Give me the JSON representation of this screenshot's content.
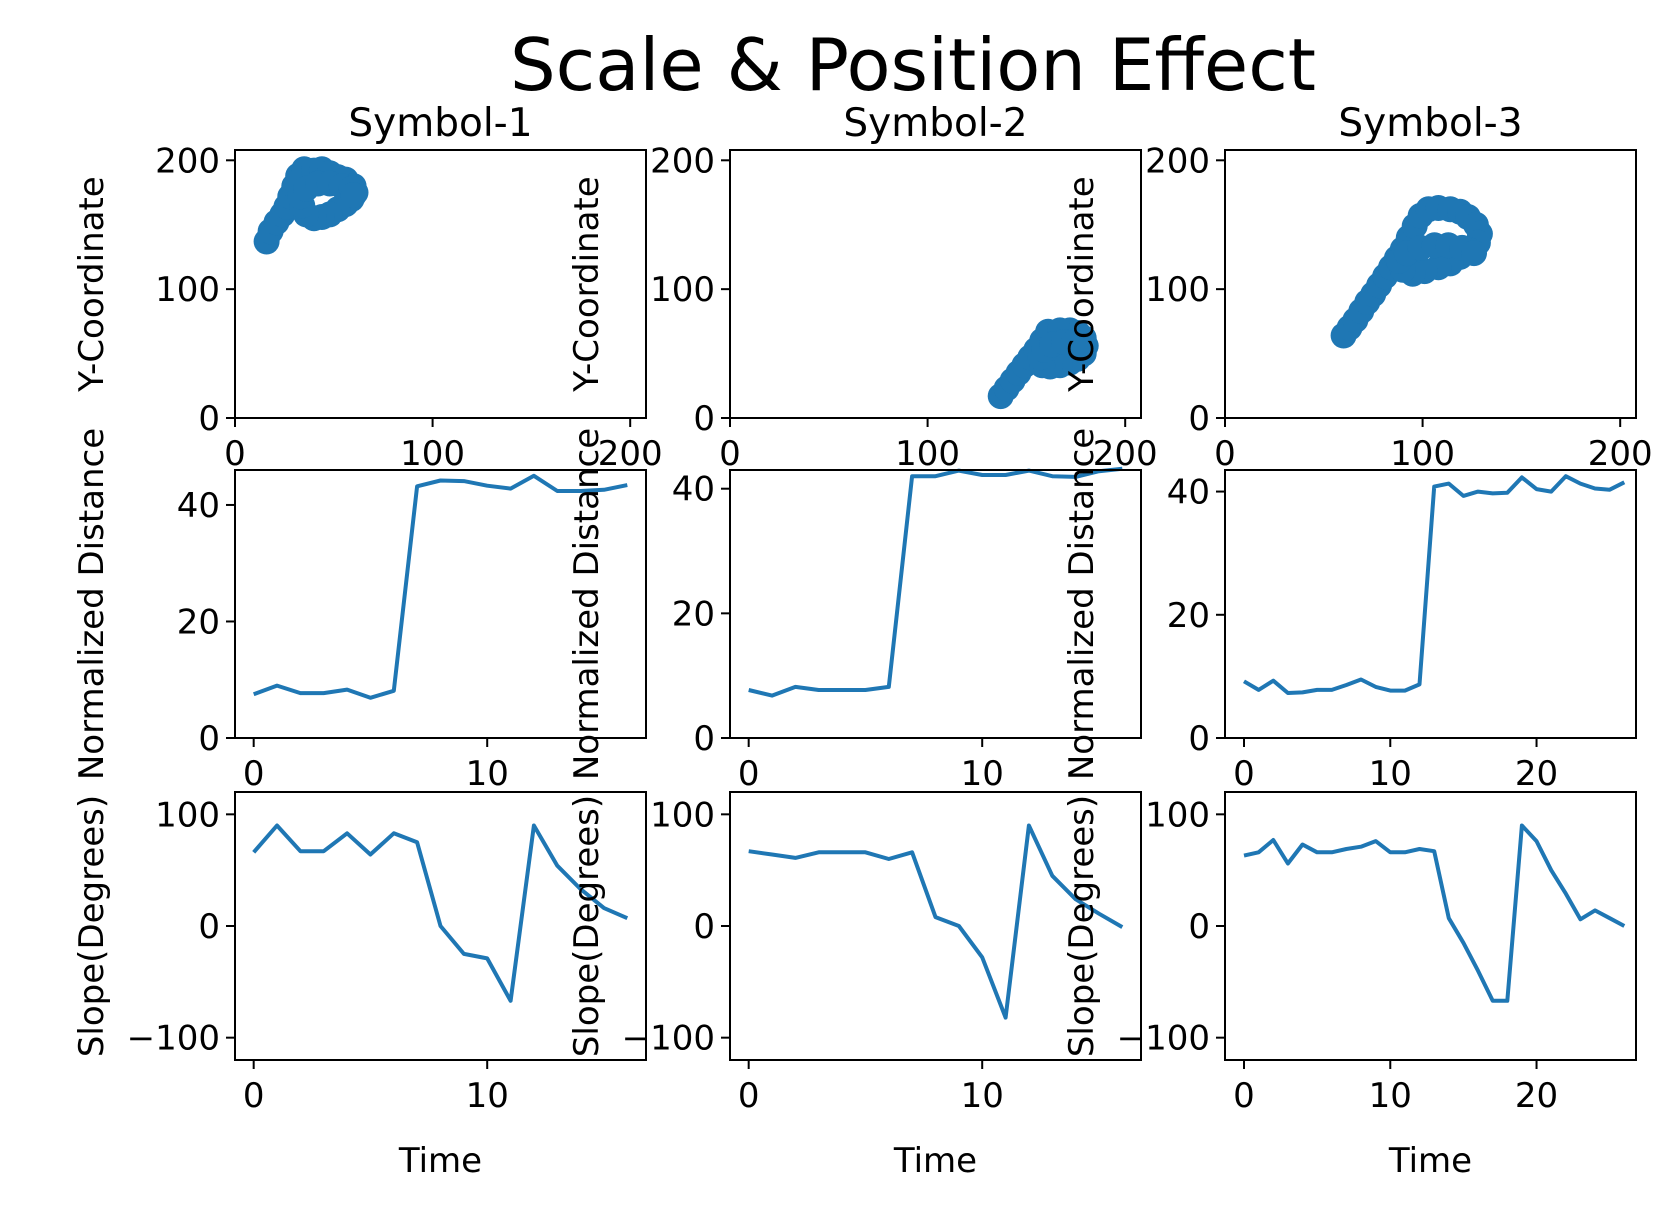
{
  "suptitle": "Scale & Position Effect",
  "accent_color": "#1f77b4",
  "chart_data": [
    {
      "id": "r0c0",
      "type": "scatter",
      "title": "Symbol-1",
      "xlabel": "",
      "ylabel": "Y-Coordinate",
      "xlim": [
        0,
        208
      ],
      "ylim": [
        0,
        208
      ],
      "xticks": [
        0,
        100,
        200
      ],
      "xtick_labels": [
        "0",
        "100",
        "200"
      ],
      "yticks": [
        0,
        100,
        200
      ],
      "ytick_labels": [
        "0",
        "100",
        "200"
      ],
      "points": [
        [
          16,
          137
        ],
        [
          18,
          145
        ],
        [
          21,
          152
        ],
        [
          24,
          158
        ],
        [
          26,
          164
        ],
        [
          28,
          172
        ],
        [
          30,
          180
        ],
        [
          32,
          188
        ],
        [
          35,
          193
        ],
        [
          40,
          192
        ],
        [
          44,
          193
        ],
        [
          48,
          190
        ],
        [
          52,
          187
        ],
        [
          56,
          185
        ],
        [
          60,
          180
        ],
        [
          61,
          175
        ],
        [
          59,
          170
        ],
        [
          56,
          166
        ],
        [
          52,
          162
        ],
        [
          48,
          158
        ],
        [
          44,
          156
        ],
        [
          40,
          155
        ],
        [
          36,
          158
        ],
        [
          34,
          165
        ],
        [
          33,
          172
        ],
        [
          36,
          178
        ],
        [
          42,
          182
        ],
        [
          48,
          182
        ],
        [
          54,
          180
        ],
        [
          59,
          178
        ],
        [
          60,
          173
        ]
      ]
    },
    {
      "id": "r0c1",
      "type": "scatter",
      "title": "Symbol-2",
      "xlabel": "",
      "ylabel": "Y-Coordinate",
      "xlim": [
        0,
        208
      ],
      "ylim": [
        0,
        208
      ],
      "xticks": [
        0,
        100,
        200
      ],
      "xtick_labels": [
        "0",
        "100",
        "200"
      ],
      "yticks": [
        0,
        100,
        200
      ],
      "ytick_labels": [
        "0",
        "100",
        "200"
      ],
      "points": [
        [
          137,
          17
        ],
        [
          140,
          23
        ],
        [
          143,
          29
        ],
        [
          146,
          35
        ],
        [
          149,
          41
        ],
        [
          152,
          47
        ],
        [
          155,
          53
        ],
        [
          158,
          60
        ],
        [
          161,
          67
        ],
        [
          167,
          68
        ],
        [
          172,
          68
        ],
        [
          176,
          66
        ],
        [
          179,
          62
        ],
        [
          180,
          56
        ],
        [
          179,
          50
        ],
        [
          176,
          46
        ],
        [
          172,
          43
        ],
        [
          167,
          41
        ],
        [
          162,
          40
        ],
        [
          158,
          41
        ],
        [
          157,
          47
        ],
        [
          159,
          53
        ],
        [
          163,
          57
        ],
        [
          169,
          59
        ],
        [
          174,
          59
        ],
        [
          178,
          57
        ]
      ]
    },
    {
      "id": "r0c2",
      "type": "scatter",
      "title": "Symbol-3",
      "xlabel": "",
      "ylabel": "Y-Coordinate",
      "xlim": [
        0,
        208
      ],
      "ylim": [
        0,
        208
      ],
      "xticks": [
        0,
        100,
        200
      ],
      "xtick_labels": [
        "0",
        "100",
        "200"
      ],
      "yticks": [
        0,
        100,
        200
      ],
      "ytick_labels": [
        "0",
        "100",
        "200"
      ],
      "points": [
        [
          60,
          64
        ],
        [
          63,
          70
        ],
        [
          66,
          76
        ],
        [
          69,
          83
        ],
        [
          72,
          90
        ],
        [
          75,
          96
        ],
        [
          78,
          103
        ],
        [
          81,
          110
        ],
        [
          84,
          117
        ],
        [
          87,
          124
        ],
        [
          90,
          131
        ],
        [
          93,
          140
        ],
        [
          96,
          149
        ],
        [
          99,
          157
        ],
        [
          103,
          162
        ],
        [
          108,
          163
        ],
        [
          114,
          162
        ],
        [
          119,
          160
        ],
        [
          123,
          156
        ],
        [
          127,
          150
        ],
        [
          129,
          143
        ],
        [
          128,
          136
        ],
        [
          124,
          130
        ],
        [
          119,
          125
        ],
        [
          114,
          120
        ],
        [
          108,
          117
        ],
        [
          101,
          114
        ],
        [
          95,
          112
        ],
        [
          90,
          115
        ],
        [
          88,
          122
        ],
        [
          92,
          128
        ],
        [
          99,
          132
        ],
        [
          106,
          134
        ],
        [
          113,
          134
        ],
        [
          120,
          132
        ],
        [
          126,
          128
        ]
      ]
    },
    {
      "id": "r1c0",
      "type": "line",
      "title": "",
      "xlabel": "",
      "ylabel": "Normalized Distance",
      "xlim": [
        -0.8,
        16.8
      ],
      "ylim": [
        0,
        46
      ],
      "xticks": [
        0,
        10
      ],
      "xtick_labels": [
        "0",
        "10"
      ],
      "yticks": [
        0,
        20,
        40
      ],
      "ytick_labels": [
        "0",
        "20",
        "40"
      ],
      "x": [
        0,
        1,
        2,
        3,
        4,
        5,
        6,
        7,
        8,
        9,
        10,
        11,
        12,
        13,
        14,
        15,
        16
      ],
      "y": [
        7.5,
        9,
        7.7,
        7.7,
        8.3,
        6.9,
        8.1,
        43.2,
        44.2,
        44.1,
        43.3,
        42.8,
        45.0,
        42.4,
        42.4,
        42.6,
        43.4
      ]
    },
    {
      "id": "r1c1",
      "type": "line",
      "title": "",
      "xlabel": "",
      "ylabel": "Normalized Distance",
      "xlim": [
        -0.8,
        16.8
      ],
      "ylim": [
        0,
        43
      ],
      "xticks": [
        0,
        10
      ],
      "xtick_labels": [
        "0",
        "10"
      ],
      "yticks": [
        0,
        20,
        40
      ],
      "ytick_labels": [
        "0",
        "20",
        "40"
      ],
      "x": [
        0,
        1,
        2,
        3,
        4,
        5,
        6,
        7,
        8,
        9,
        10,
        11,
        12,
        13,
        14,
        15,
        16
      ],
      "y": [
        7.7,
        6.8,
        8.2,
        7.7,
        7.7,
        7.7,
        8.2,
        42.0,
        42.0,
        42.9,
        42.2,
        42.2,
        42.9,
        42.0,
        41.9,
        42.8,
        43.2
      ]
    },
    {
      "id": "r1c2",
      "type": "line",
      "title": "",
      "xlabel": "",
      "ylabel": "Normalized Distance",
      "xlim": [
        -1.3,
        26.8
      ],
      "ylim": [
        0,
        43.5
      ],
      "xticks": [
        0,
        10,
        20
      ],
      "xtick_labels": [
        "0",
        "10",
        "20"
      ],
      "yticks": [
        0,
        20,
        40
      ],
      "ytick_labels": [
        "0",
        "20",
        "40"
      ],
      "x": [
        0,
        1,
        2,
        3,
        4,
        5,
        6,
        7,
        8,
        9,
        10,
        11,
        12,
        13,
        14,
        15,
        16,
        17,
        18,
        19,
        20,
        21,
        22,
        23,
        24,
        25,
        26
      ],
      "y": [
        9.2,
        7.8,
        9.3,
        7.3,
        7.4,
        7.8,
        7.8,
        8.6,
        9.5,
        8.3,
        7.7,
        7.7,
        8.7,
        40.8,
        41.3,
        39.3,
        40.0,
        39.7,
        39.8,
        42.3,
        40.4,
        40.0,
        42.5,
        41.3,
        40.5,
        40.3,
        41.5
      ]
    },
    {
      "id": "r2c0",
      "type": "line",
      "title": "",
      "xlabel": "Time",
      "ylabel": "Slope(Degrees)",
      "xlim": [
        -0.8,
        16.8
      ],
      "ylim": [
        -120,
        120
      ],
      "xticks": [
        0,
        10
      ],
      "xtick_labels": [
        "0",
        "10"
      ],
      "yticks": [
        -100,
        0,
        100
      ],
      "ytick_labels": [
        "−100",
        "0",
        "100"
      ],
      "x": [
        0,
        1,
        2,
        3,
        4,
        5,
        6,
        7,
        8,
        9,
        10,
        11,
        12,
        13,
        14,
        15,
        16
      ],
      "y": [
        66,
        90,
        67,
        67,
        83,
        64,
        83,
        75,
        0,
        -25,
        -29,
        -67,
        90,
        54,
        33,
        16,
        7
      ]
    },
    {
      "id": "r2c1",
      "type": "line",
      "title": "",
      "xlabel": "Time",
      "ylabel": "Slope(Degrees)",
      "xlim": [
        -0.8,
        16.8
      ],
      "ylim": [
        -120,
        120
      ],
      "xticks": [
        0,
        10
      ],
      "xtick_labels": [
        "0",
        "10"
      ],
      "yticks": [
        -100,
        0,
        100
      ],
      "ytick_labels": [
        "−100",
        "0",
        "100"
      ],
      "x": [
        0,
        1,
        2,
        3,
        4,
        5,
        6,
        7,
        8,
        9,
        10,
        11,
        12,
        13,
        14,
        15,
        16
      ],
      "y": [
        67,
        64,
        61,
        66,
        66,
        66,
        60,
        66,
        8,
        0,
        -28,
        -82,
        90,
        45,
        24,
        11,
        -1
      ]
    },
    {
      "id": "r2c2",
      "type": "line",
      "title": "",
      "xlabel": "Time",
      "ylabel": "Slope(Degrees)",
      "xlim": [
        -1.3,
        26.8
      ],
      "ylim": [
        -120,
        120
      ],
      "xticks": [
        0,
        10,
        20
      ],
      "xtick_labels": [
        "0",
        "10",
        "20"
      ],
      "yticks": [
        -100,
        0,
        100
      ],
      "ytick_labels": [
        "−100",
        "0",
        "100"
      ],
      "x": [
        0,
        1,
        2,
        3,
        4,
        5,
        6,
        7,
        8,
        9,
        10,
        11,
        12,
        13,
        14,
        15,
        16,
        17,
        18,
        19,
        20,
        21,
        22,
        23,
        24,
        25,
        26
      ],
      "y": [
        63,
        66,
        77,
        56,
        73,
        66,
        66,
        69,
        71,
        76,
        66,
        66,
        69,
        67,
        7,
        -15,
        -40,
        -67,
        -67,
        90,
        76,
        50,
        29,
        6,
        14,
        7,
        0
      ]
    }
  ]
}
